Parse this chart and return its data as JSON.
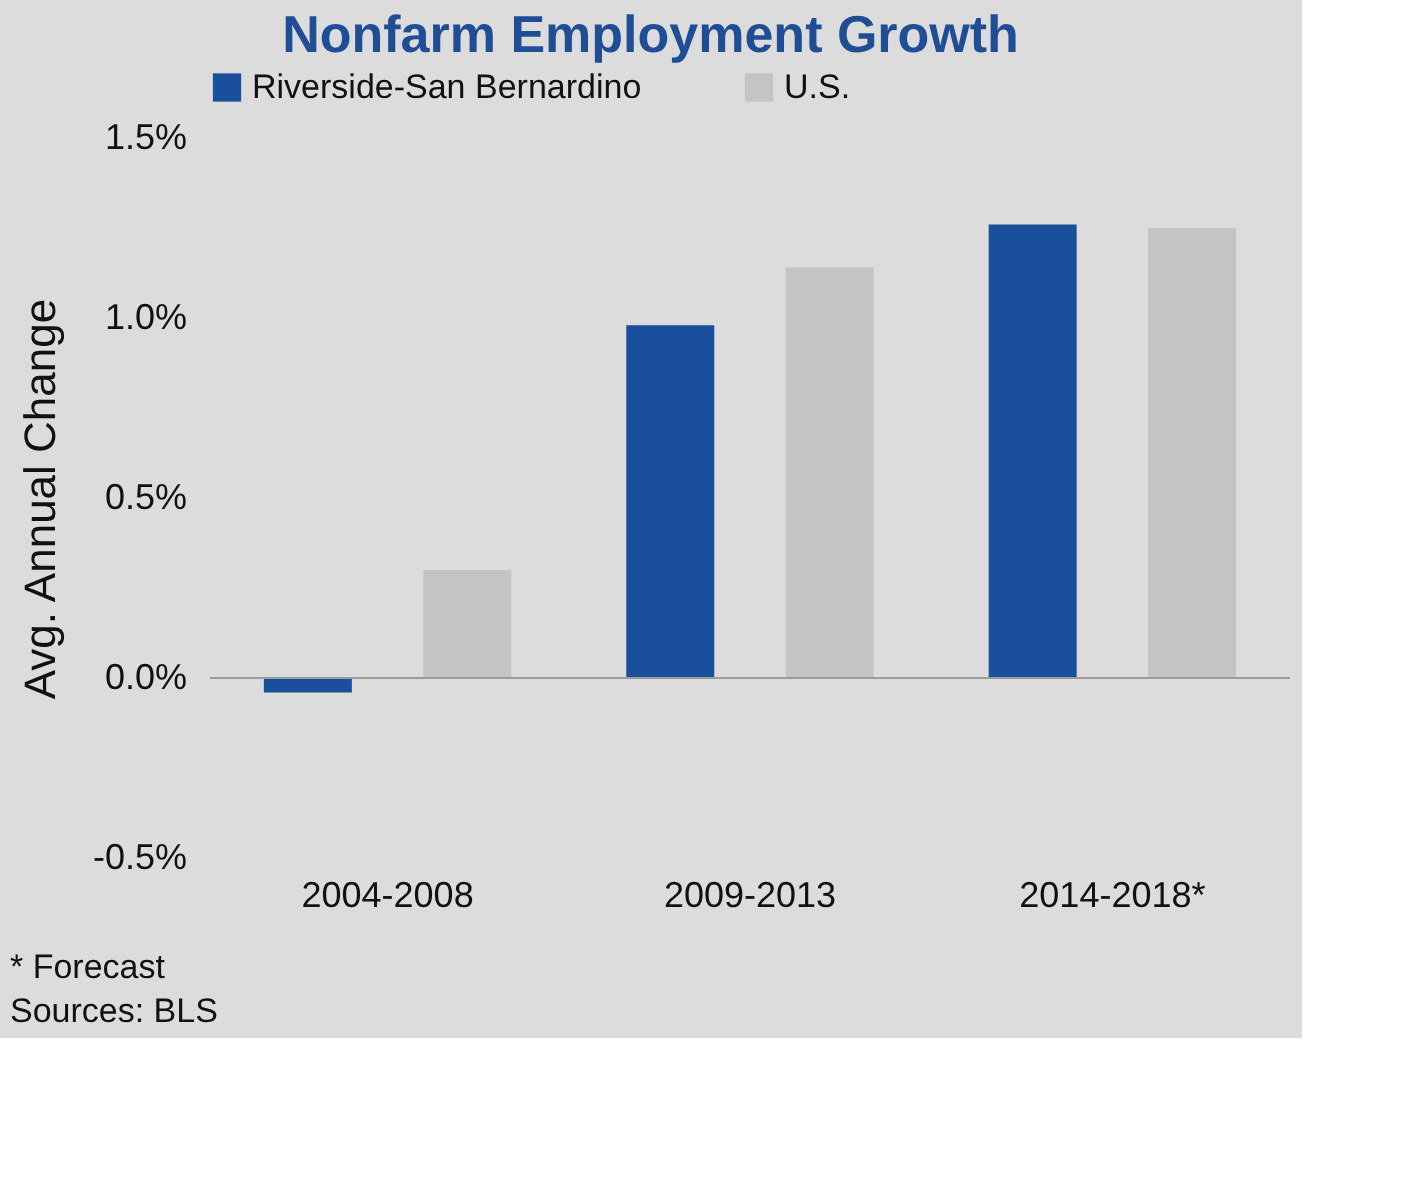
{
  "chart_data": {
    "type": "bar",
    "title": "Nonfarm Employment Growth",
    "ylabel": "Avg. Annual Change",
    "categories": [
      "2004-2008",
      "2009-2013",
      "2014-2018*"
    ],
    "series": [
      {
        "name": "Riverside-San Bernardino",
        "color": "#1a4f9c",
        "values": [
          -0.04,
          0.98,
          1.26
        ]
      },
      {
        "name": "U.S.",
        "color": "#c4c4c4",
        "values": [
          0.3,
          1.14,
          1.25
        ]
      }
    ],
    "ylim": [
      -0.5,
      1.5
    ],
    "yticks": [
      {
        "value": -0.5,
        "label": "-0.5%"
      },
      {
        "value": 0,
        "label": "0.0%"
      },
      {
        "value": 0.5,
        "label": "0.5%"
      },
      {
        "value": 1.0,
        "label": "1.0%"
      },
      {
        "value": 1.5,
        "label": "1.5%"
      }
    ],
    "ref_lines": [
      {
        "axis": "y",
        "value": 0,
        "color": "#9a9a9a"
      }
    ],
    "legend": "top",
    "annotations": [
      "* Forecast",
      "Sources: BLS"
    ]
  }
}
